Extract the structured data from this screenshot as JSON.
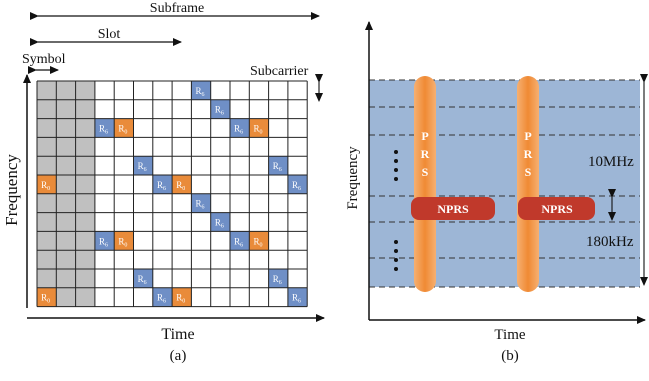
{
  "panel_a": {
    "subframe_label": "Subframe",
    "slot_label": "Slot",
    "symbol_label": "Symbol",
    "subcarrier_label": "Subcarrier",
    "frequency_axis_label": "Frequency",
    "time_axis_label": "Time",
    "caption": "(a)",
    "grid": {
      "rows": 12,
      "cols": 14,
      "control_cols": 3
    },
    "r6_symbol": "R",
    "r6_sub": "6",
    "r0_symbol": "R",
    "r0_sub": "0",
    "r6_cells": [
      [
        0,
        8
      ],
      [
        1,
        9
      ],
      [
        2,
        3
      ],
      [
        2,
        10
      ],
      [
        4,
        5
      ],
      [
        4,
        12
      ],
      [
        5,
        6
      ],
      [
        5,
        13
      ],
      [
        6,
        8
      ],
      [
        7,
        9
      ],
      [
        8,
        3
      ],
      [
        8,
        10
      ],
      [
        10,
        5
      ],
      [
        10,
        12
      ],
      [
        11,
        6
      ],
      [
        11,
        13
      ]
    ],
    "r0_cells": [
      [
        2,
        4
      ],
      [
        2,
        11
      ],
      [
        5,
        0
      ],
      [
        5,
        7
      ],
      [
        8,
        4
      ],
      [
        8,
        11
      ],
      [
        11,
        0
      ],
      [
        11,
        7
      ]
    ],
    "colors": {
      "r6_fill": "#6f8fc6",
      "r0_fill": "#e98b3a",
      "control_fill": "#c0c0c0"
    }
  },
  "panel_b": {
    "frequency_axis_label": "Frequency",
    "time_axis_label": "Time",
    "caption": "(b)",
    "prs_letters": [
      "P",
      "R",
      "S"
    ],
    "nprs_label": "NPRS",
    "bandwidth_10mhz_label": "10MHz",
    "bandwidth_180khz_label": "180kHz",
    "colors": {
      "band_fill": "#9db6d6",
      "prs_fill": "#f08a34",
      "nprs_fill": "#c0392b"
    }
  }
}
